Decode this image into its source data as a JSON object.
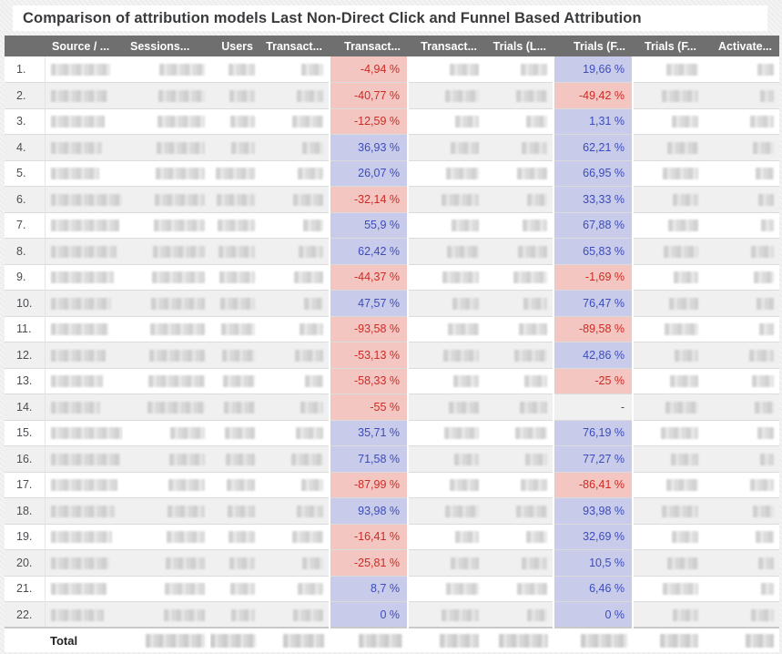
{
  "title": "Comparison of attribution models Last Non-Direct Click and Funnel Based Attribution",
  "colors": {
    "header_bg": "#6f6f6f",
    "header_text": "#ffffff",
    "negative_bg": "#f4c6c2",
    "negative_text": "#cc2b24",
    "positive_bg": "#c8cbe9",
    "positive_text": "#3c4cba"
  },
  "table": {
    "columns": [
      {
        "key": "num",
        "label": ""
      },
      {
        "key": "source",
        "label": "Source / ..."
      },
      {
        "key": "sessions",
        "label": "Sessions..."
      },
      {
        "key": "users",
        "label": "Users"
      },
      {
        "key": "transactions_lndc",
        "label": "Transact..."
      },
      {
        "key": "transactions_delta",
        "label": "Transact..."
      },
      {
        "key": "transactions_fba",
        "label": "Transact..."
      },
      {
        "key": "trials_lndc",
        "label": "Trials (L..."
      },
      {
        "key": "trials_delta",
        "label": "Trials (F..."
      },
      {
        "key": "trials_fba",
        "label": "Trials (F..."
      },
      {
        "key": "activations",
        "label": "Activate..."
      }
    ],
    "rows": [
      {
        "num": "1.",
        "transactions_delta": {
          "value": "-4,94 %",
          "type": "negative"
        },
        "trials_delta": {
          "value": "19,66 %",
          "type": "positive"
        }
      },
      {
        "num": "2.",
        "transactions_delta": {
          "value": "-40,77 %",
          "type": "negative"
        },
        "trials_delta": {
          "value": "-49,42 %",
          "type": "negative"
        }
      },
      {
        "num": "3.",
        "transactions_delta": {
          "value": "-12,59 %",
          "type": "negative"
        },
        "trials_delta": {
          "value": "1,31 %",
          "type": "positive"
        }
      },
      {
        "num": "4.",
        "transactions_delta": {
          "value": "36,93 %",
          "type": "positive"
        },
        "trials_delta": {
          "value": "62,21 %",
          "type": "positive"
        }
      },
      {
        "num": "5.",
        "transactions_delta": {
          "value": "26,07 %",
          "type": "positive"
        },
        "trials_delta": {
          "value": "66,95 %",
          "type": "positive"
        }
      },
      {
        "num": "6.",
        "transactions_delta": {
          "value": "-32,14 %",
          "type": "negative"
        },
        "trials_delta": {
          "value": "33,33 %",
          "type": "positive"
        }
      },
      {
        "num": "7.",
        "transactions_delta": {
          "value": "55,9 %",
          "type": "positive"
        },
        "trials_delta": {
          "value": "67,88 %",
          "type": "positive"
        }
      },
      {
        "num": "8.",
        "transactions_delta": {
          "value": "62,42 %",
          "type": "positive"
        },
        "trials_delta": {
          "value": "65,83 %",
          "type": "positive"
        }
      },
      {
        "num": "9.",
        "transactions_delta": {
          "value": "-44,37 %",
          "type": "negative"
        },
        "trials_delta": {
          "value": "-1,69 %",
          "type": "negative"
        }
      },
      {
        "num": "10.",
        "transactions_delta": {
          "value": "47,57 %",
          "type": "positive"
        },
        "trials_delta": {
          "value": "76,47 %",
          "type": "positive"
        }
      },
      {
        "num": "11.",
        "transactions_delta": {
          "value": "-93,58 %",
          "type": "negative"
        },
        "trials_delta": {
          "value": "-89,58 %",
          "type": "negative"
        }
      },
      {
        "num": "12.",
        "transactions_delta": {
          "value": "-53,13 %",
          "type": "negative"
        },
        "trials_delta": {
          "value": "42,86 %",
          "type": "positive"
        }
      },
      {
        "num": "13.",
        "transactions_delta": {
          "value": "-58,33 %",
          "type": "negative"
        },
        "trials_delta": {
          "value": "-25 %",
          "type": "negative"
        }
      },
      {
        "num": "14.",
        "transactions_delta": {
          "value": "-55 %",
          "type": "negative"
        },
        "trials_delta": {
          "value": "-",
          "type": "none"
        }
      },
      {
        "num": "15.",
        "transactions_delta": {
          "value": "35,71 %",
          "type": "positive"
        },
        "trials_delta": {
          "value": "76,19 %",
          "type": "positive"
        }
      },
      {
        "num": "16.",
        "transactions_delta": {
          "value": "71,58 %",
          "type": "positive"
        },
        "trials_delta": {
          "value": "77,27 %",
          "type": "positive"
        }
      },
      {
        "num": "17.",
        "transactions_delta": {
          "value": "-87,99 %",
          "type": "negative"
        },
        "trials_delta": {
          "value": "-86,41 %",
          "type": "negative"
        }
      },
      {
        "num": "18.",
        "transactions_delta": {
          "value": "93,98 %",
          "type": "positive"
        },
        "trials_delta": {
          "value": "93,98 %",
          "type": "positive"
        }
      },
      {
        "num": "19.",
        "transactions_delta": {
          "value": "-16,41 %",
          "type": "negative"
        },
        "trials_delta": {
          "value": "32,69 %",
          "type": "positive"
        }
      },
      {
        "num": "20.",
        "transactions_delta": {
          "value": "-25,81 %",
          "type": "negative"
        },
        "trials_delta": {
          "value": "10,5 %",
          "type": "positive"
        }
      },
      {
        "num": "21.",
        "transactions_delta": {
          "value": "8,7 %",
          "type": "positive"
        },
        "trials_delta": {
          "value": "6,46 %",
          "type": "positive"
        }
      },
      {
        "num": "22.",
        "transactions_delta": {
          "value": "0 %",
          "type": "positive"
        },
        "trials_delta": {
          "value": "0 %",
          "type": "positive"
        }
      }
    ],
    "total_label": "Total"
  }
}
